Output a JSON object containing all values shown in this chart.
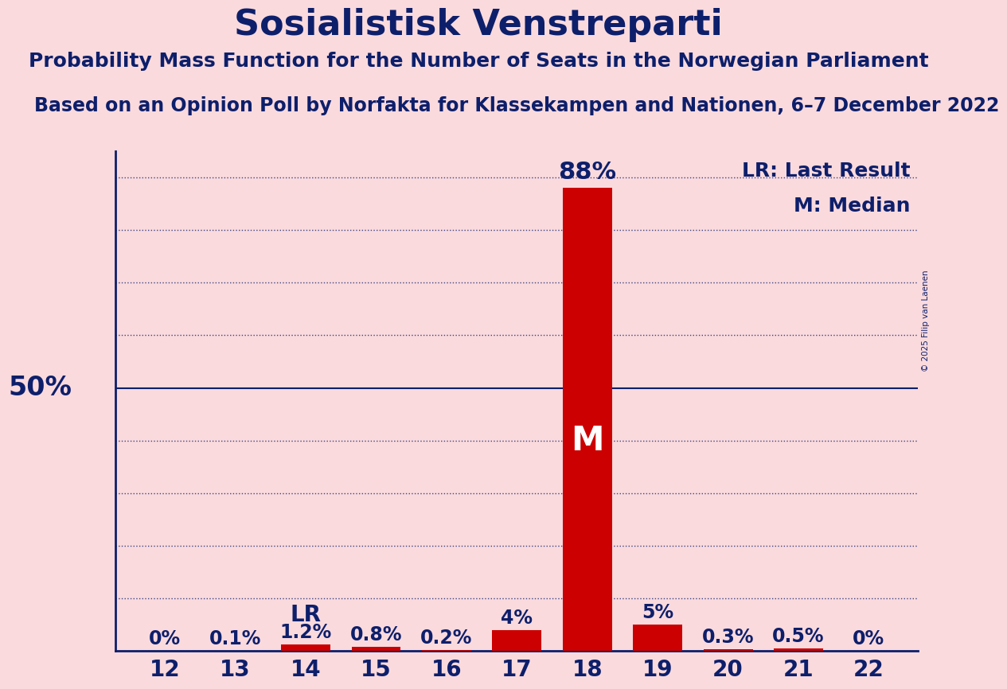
{
  "title": "Sosialistisk Venstreparti",
  "subtitle": "Probability Mass Function for the Number of Seats in the Norwegian Parliament",
  "source": "Based on an Opinion Poll by Norfakta for Klassekampen and Nationen, 6–7 December 2022",
  "copyright": "© 2025 Filip van Laenen",
  "seats": [
    12,
    13,
    14,
    15,
    16,
    17,
    18,
    19,
    20,
    21,
    22
  ],
  "probabilities": [
    0.0,
    0.1,
    1.2,
    0.8,
    0.2,
    4.0,
    88.0,
    5.0,
    0.3,
    0.5,
    0.0
  ],
  "bar_color": "#CC0000",
  "background_color": "#FADADD",
  "text_color": "#0D1F6B",
  "median_seat": 18,
  "last_result_seat": 14,
  "legend_lr": "LR: Last Result",
  "legend_m": "M: Median",
  "ylabel_50": "50%",
  "ylim": [
    0,
    95
  ],
  "title_fontsize": 32,
  "subtitle_fontsize": 18,
  "source_fontsize": 17,
  "bar_label_fontsize": 17,
  "median_label_fontsize": 22,
  "axis_label_fontsize": 24,
  "legend_fontsize": 18,
  "tick_fontsize": 20,
  "m_fontsize": 30,
  "lr_fontsize": 20
}
